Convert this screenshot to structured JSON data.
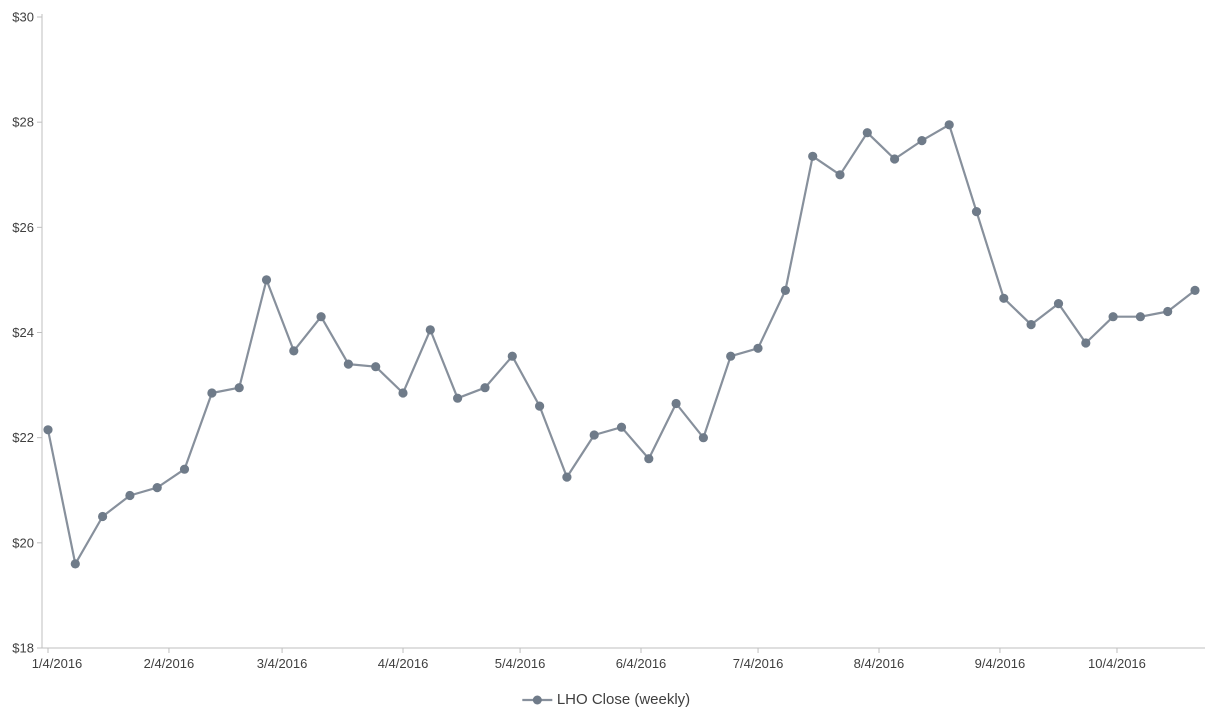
{
  "chart_data": {
    "type": "line",
    "title": "",
    "x": [
      "1/4/2016",
      "1/11/2016",
      "1/18/2016",
      "1/25/2016",
      "2/1/2016",
      "2/8/2016",
      "2/15/2016",
      "2/22/2016",
      "2/29/2016",
      "3/7/2016",
      "3/14/2016",
      "3/21/2016",
      "3/28/2016",
      "4/4/2016",
      "4/11/2016",
      "4/18/2016",
      "4/25/2016",
      "5/2/2016",
      "5/9/2016",
      "5/16/2016",
      "5/23/2016",
      "5/30/2016",
      "6/6/2016",
      "6/13/2016",
      "6/20/2016",
      "6/27/2016",
      "7/4/2016",
      "7/11/2016",
      "7/18/2016",
      "7/25/2016",
      "8/1/2016",
      "8/8/2016",
      "8/15/2016",
      "8/22/2016",
      "8/29/2016",
      "9/5/2016",
      "9/12/2016",
      "9/19/2016",
      "9/26/2016",
      "10/3/2016",
      "10/10/2016",
      "10/17/2016",
      "10/24/2016"
    ],
    "series": [
      {
        "name": "LHO Close (weekly)",
        "values": [
          22.15,
          19.6,
          20.5,
          20.9,
          21.05,
          21.4,
          22.85,
          22.95,
          25.0,
          23.65,
          24.3,
          23.4,
          23.35,
          22.85,
          24.05,
          22.75,
          22.95,
          23.55,
          22.6,
          21.25,
          22.05,
          22.2,
          21.6,
          22.65,
          22.0,
          23.55,
          23.7,
          24.8,
          27.35,
          27.0,
          27.8,
          27.3,
          27.65,
          27.95,
          26.3,
          24.65,
          24.15,
          24.55,
          23.8,
          24.3,
          24.3,
          24.4,
          24.8
        ],
        "color": "#87909c",
        "marker_color": "#6f7b89",
        "marker": "circle"
      }
    ],
    "x_axis": {
      "labels": [
        "1/4/2016",
        "2/4/2016",
        "3/4/2016",
        "4/4/2016",
        "5/4/2016",
        "6/4/2016",
        "7/4/2016",
        "8/4/2016",
        "9/4/2016",
        "10/4/2016"
      ]
    },
    "y_axis": {
      "min": 18,
      "max": 30,
      "tick_step": 2,
      "tick_labels": [
        "$18",
        "$20",
        "$22",
        "$24",
        "$26",
        "$28",
        "$30"
      ]
    },
    "legend": {
      "label": "LHO Close (weekly)",
      "position": "bottom-center"
    },
    "grid": false,
    "colors": {
      "axis": "#bfbfbf",
      "text": "#3f3f3f",
      "background": "#ffffff"
    }
  }
}
